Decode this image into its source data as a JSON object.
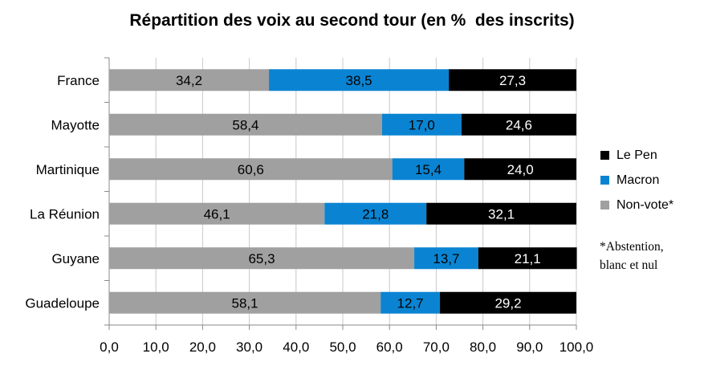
{
  "chart_data": {
    "type": "bar",
    "orientation": "horizontal",
    "stacked": true,
    "title": "Répartition des voix au second tour (en %  des inscrits)",
    "categories": [
      "France",
      "Mayotte",
      "Martinique",
      "La Réunion",
      "Guyane",
      "Guadeloupe"
    ],
    "series": [
      {
        "name": "Non-vote*",
        "color": "#a0a0a0",
        "values": [
          34.2,
          58.4,
          60.6,
          46.1,
          65.3,
          58.1
        ],
        "labels": [
          "34,2",
          "58,4",
          "60,6",
          "46,1",
          "65,3",
          "58,1"
        ],
        "label_color": "#000000"
      },
      {
        "name": "Macron",
        "color": "#0a84d2",
        "values": [
          38.5,
          17.0,
          15.4,
          21.8,
          13.7,
          12.7
        ],
        "labels": [
          "38,5",
          "17,0",
          "15,4",
          "21,8",
          "13,7",
          "12,7"
        ],
        "label_color": "#000000"
      },
      {
        "name": "Le Pen",
        "color": "#000000",
        "values": [
          27.3,
          24.6,
          24.0,
          32.1,
          21.1,
          29.2
        ],
        "labels": [
          "27,3",
          "24,6",
          "24,0",
          "32,1",
          "21,1",
          "29,2"
        ],
        "label_color": "#ffffff"
      }
    ],
    "xlim": [
      0,
      100
    ],
    "xticks": [
      "0,0",
      "10,0",
      "20,0",
      "30,0",
      "40,0",
      "50,0",
      "60,0",
      "70,0",
      "80,0",
      "90,0",
      "100,0"
    ],
    "grid": true,
    "legend_position": "right",
    "legend_order": [
      "Le Pen",
      "Macron",
      "Non-vote*"
    ],
    "footnote": "*Abstention,\nblanc et nul"
  }
}
